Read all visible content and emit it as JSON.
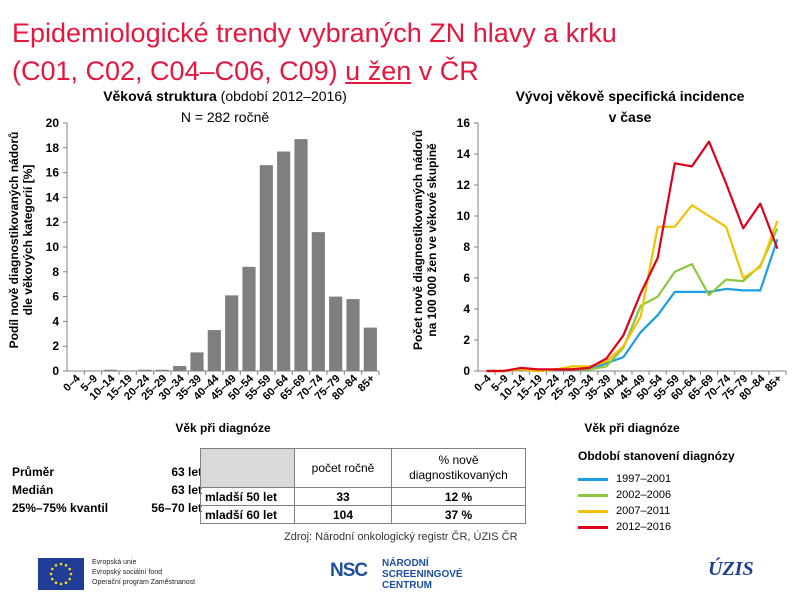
{
  "title_line1": "Epidemiologické trendy vybraných ZN hlavy a krku",
  "title_line2_pre": "(C01, C02, C04–C06, C09) ",
  "title_line2_u": "u žen",
  "title_line2_post": " v ČR",
  "left_chart_title_bold": "Věková struktura",
  "left_chart_title_rest": " (období 2012–2016)",
  "left_chart_subtitle": "N = 282 ročně",
  "right_chart_title_l1": "Vývoj věkově specifická incidence",
  "right_chart_title_l2": "v čase",
  "stats": {
    "mean_label": "Průměr",
    "mean_value": "63 let",
    "median_label": "Medián",
    "median_value": "63 let",
    "iqr_label": "25%–75% kvantil",
    "iqr_value": "56–70 let"
  },
  "age_table": {
    "col1": "počet ročně",
    "col2_l1": "% nově",
    "col2_l2": "diagnostikovaných",
    "rows": [
      {
        "label": "mladší 50 let",
        "count": "33",
        "pct": "12 %"
      },
      {
        "label": "mladší 60 let",
        "count": "104",
        "pct": "37 %"
      }
    ]
  },
  "legend_title": "Období stanovení diagnózy",
  "source": "Zdroj: Národní onkologický registr ČR, ÚZIS ČR",
  "footer": {
    "eu_l1": "Evropská unie",
    "eu_l2": "Evropský sociální fond",
    "eu_l3": "Operační program Zaměstnanost",
    "nsc_logo": "NSC",
    "nsc_l1": "NÁRODNÍ",
    "nsc_l2": "SCREENINGOVÉ",
    "nsc_l3": "CENTRUM",
    "uzis": "ÚZIS"
  },
  "chart_data": [
    {
      "type": "bar",
      "ylabel": "Podíl nově diagnostikovaných nádorů dle věkových kategorií [%]",
      "xlabel": "Věk při diagnóze",
      "ylim": [
        0,
        20
      ],
      "yticks": [
        0,
        2,
        4,
        6,
        8,
        10,
        12,
        14,
        16,
        18,
        20
      ],
      "categories": [
        "0–4",
        "5–9",
        "10–14",
        "15–19",
        "20–24",
        "25–29",
        "30–34",
        "35–39",
        "40–44",
        "45–49",
        "50–54",
        "55–59",
        "60–64",
        "65–69",
        "70–74",
        "75–79",
        "80–84",
        "85+"
      ],
      "values": [
        0,
        0,
        0.1,
        0,
        0.1,
        0.1,
        0.4,
        1.5,
        3.3,
        6.1,
        8.4,
        16.6,
        17.7,
        18.7,
        11.2,
        6.0,
        5.8,
        3.5
      ],
      "color": "#7f7f7f",
      "grid": false
    },
    {
      "type": "line",
      "ylabel": "Počet nově diagnostikovaných nádorů na 100 000 žen ve věkové skupině",
      "xlabel": "Věk při diagnóze",
      "ylim": [
        0,
        16
      ],
      "yticks": [
        0,
        2,
        4,
        6,
        8,
        10,
        12,
        14,
        16
      ],
      "categories": [
        "0–4",
        "5–9",
        "10–14",
        "15–19",
        "20–24",
        "25–29",
        "30–34",
        "35–39",
        "40–44",
        "45–49",
        "50–54",
        "55–59",
        "60–64",
        "65–69",
        "70–74",
        "75–79",
        "80–84",
        "85+"
      ],
      "series": [
        {
          "name": "1997–2001",
          "color": "#1a9fe0",
          "values": [
            0,
            0,
            0.1,
            0,
            0.1,
            0.1,
            0.1,
            0.5,
            0.9,
            2.5,
            3.6,
            5.1,
            5.1,
            5.1,
            5.3,
            5.2,
            5.2,
            8.5
          ]
        },
        {
          "name": "2002–2006",
          "color": "#8dc63f",
          "values": [
            0,
            0,
            0.1,
            0,
            0.1,
            0.1,
            0.1,
            0.3,
            1.5,
            4.2,
            4.8,
            6.4,
            6.9,
            4.9,
            5.9,
            5.8,
            6.8,
            9.2
          ]
        },
        {
          "name": "2007–2011",
          "color": "#f2c200",
          "values": [
            0,
            0,
            0.1,
            0,
            0.1,
            0.3,
            0.3,
            0.6,
            1.6,
            3.5,
            9.3,
            9.3,
            10.7,
            10.0,
            9.3,
            6.0,
            6.7,
            9.7
          ]
        },
        {
          "name": "2012–2016",
          "color": "#e0001b",
          "values": [
            0,
            0,
            0.2,
            0.1,
            0.1,
            0.1,
            0.2,
            0.8,
            2.3,
            5.0,
            7.3,
            13.4,
            13.2,
            14.8,
            12.1,
            9.2,
            10.8,
            7.9
          ]
        }
      ],
      "legend": "bottom-right",
      "grid": false
    }
  ]
}
